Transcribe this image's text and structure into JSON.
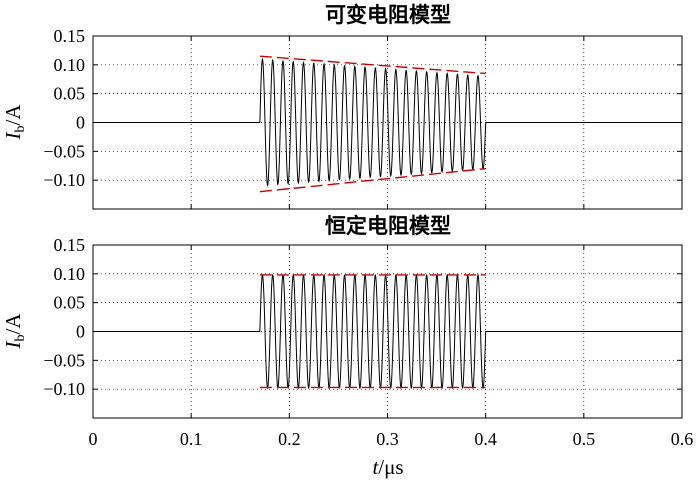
{
  "chart_data": [
    {
      "type": "line",
      "title": "可变电阻模型",
      "ylabel": "I_b/A",
      "ylabel_main": "I",
      "ylabel_sub": "b",
      "ylabel_unit": "/A",
      "xlim": [
        0,
        0.6
      ],
      "ylim": [
        -0.15,
        0.15
      ],
      "yticks": [
        0.15,
        0.1,
        0.05,
        0,
        -0.05,
        -0.1
      ],
      "ytick_labels": [
        "0.15",
        "0.10",
        "0.05",
        "0",
        "−0.05",
        "−0.10"
      ],
      "grid": true,
      "signal": {
        "color": "#000000",
        "start": 0.17,
        "end": 0.4,
        "cycles": 22,
        "amplitude_start": 0.11,
        "amplitude_end": 0.08
      },
      "envelope": {
        "color": "#cc0000",
        "style": "dashed",
        "x": [
          0.17,
          0.4
        ],
        "upper": [
          0.115,
          0.085
        ],
        "lower": [
          -0.12,
          -0.08
        ]
      }
    },
    {
      "type": "line",
      "title": "恒定电阻模型",
      "ylabel": "I_b/A",
      "ylabel_main": "I",
      "ylabel_sub": "b",
      "ylabel_unit": "/A",
      "xlim": [
        0,
        0.6
      ],
      "ylim": [
        -0.15,
        0.15
      ],
      "yticks": [
        0.15,
        0.1,
        0.05,
        0,
        -0.05,
        -0.1
      ],
      "ytick_labels": [
        "0.15",
        "0.10",
        "0.05",
        "0",
        "−0.05",
        "−0.10"
      ],
      "xticks": [
        0,
        0.1,
        0.2,
        0.3,
        0.4,
        0.5,
        0.6
      ],
      "xtick_labels": [
        "0",
        "0.1",
        "0.2",
        "0.3",
        "0.4",
        "0.5",
        "0.6"
      ],
      "xlabel": "t/μs",
      "xlabel_main": "t",
      "xlabel_unit": "/μs",
      "grid": true,
      "signal": {
        "color": "#000000",
        "start": 0.17,
        "end": 0.4,
        "cycles": 22,
        "amplitude_start": 0.098,
        "amplitude_end": 0.098
      },
      "envelope": {
        "color": "#cc0000",
        "style": "dashed",
        "x": [
          0.17,
          0.4
        ],
        "upper": [
          0.098,
          0.098
        ],
        "lower": [
          -0.097,
          -0.097
        ]
      }
    }
  ]
}
